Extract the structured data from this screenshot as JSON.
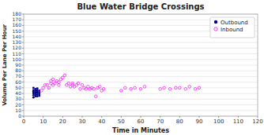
{
  "chart_data": {
    "type": "scatter",
    "title": "Blue Water Bridge Crossings",
    "x_label": "Time in Minutes",
    "y_label": "Volume Per Lane Per Hour",
    "xlim": [
      0,
      120
    ],
    "ylim": [
      0,
      180
    ],
    "xticks": [
      0,
      10,
      20,
      30,
      40,
      50,
      60,
      70,
      80,
      90,
      100,
      110,
      120
    ],
    "yticks": [
      0,
      10,
      20,
      30,
      40,
      50,
      60,
      70,
      80,
      90,
      100,
      110,
      120,
      130,
      140,
      150,
      160,
      170,
      180
    ],
    "grid": "y",
    "legend": "upper right",
    "series": [
      {
        "name": "Outbound",
        "color": "#00008B",
        "marker": "filled",
        "x": [
          5,
          5,
          5,
          5,
          5,
          5,
          5,
          6,
          6,
          6,
          6,
          6,
          6,
          7,
          7,
          7,
          7,
          7,
          7,
          8,
          8,
          8,
          8
        ],
        "values": [
          33,
          37,
          40,
          42,
          44,
          46,
          50,
          35,
          38,
          40,
          42,
          45,
          48,
          35,
          38,
          41,
          43,
          46,
          49,
          36,
          39,
          42,
          45
        ]
      },
      {
        "name": "Inbound",
        "color": "#FF00FF",
        "marker": "open",
        "x": [
          9,
          10,
          11,
          12,
          13,
          14,
          14,
          15,
          15,
          16,
          17,
          18,
          18,
          19,
          20,
          21,
          22,
          23,
          24,
          25,
          25,
          26,
          27,
          28,
          29,
          30,
          31,
          32,
          33,
          34,
          35,
          36,
          37,
          38,
          39,
          40,
          41,
          50,
          52,
          55,
          57,
          60,
          62,
          70,
          72,
          75,
          78,
          80,
          83,
          85,
          88,
          90
        ],
        "values": [
          45,
          50,
          55,
          55,
          50,
          58,
          62,
          55,
          65,
          58,
          62,
          55,
          60,
          65,
          68,
          72,
          55,
          58,
          52,
          55,
          58,
          52,
          55,
          58,
          48,
          55,
          50,
          48,
          52,
          48,
          50,
          48,
          35,
          50,
          52,
          45,
          48,
          45,
          50,
          48,
          50,
          48,
          52,
          48,
          50,
          48,
          50,
          50,
          48,
          52,
          48,
          50
        ]
      }
    ]
  }
}
